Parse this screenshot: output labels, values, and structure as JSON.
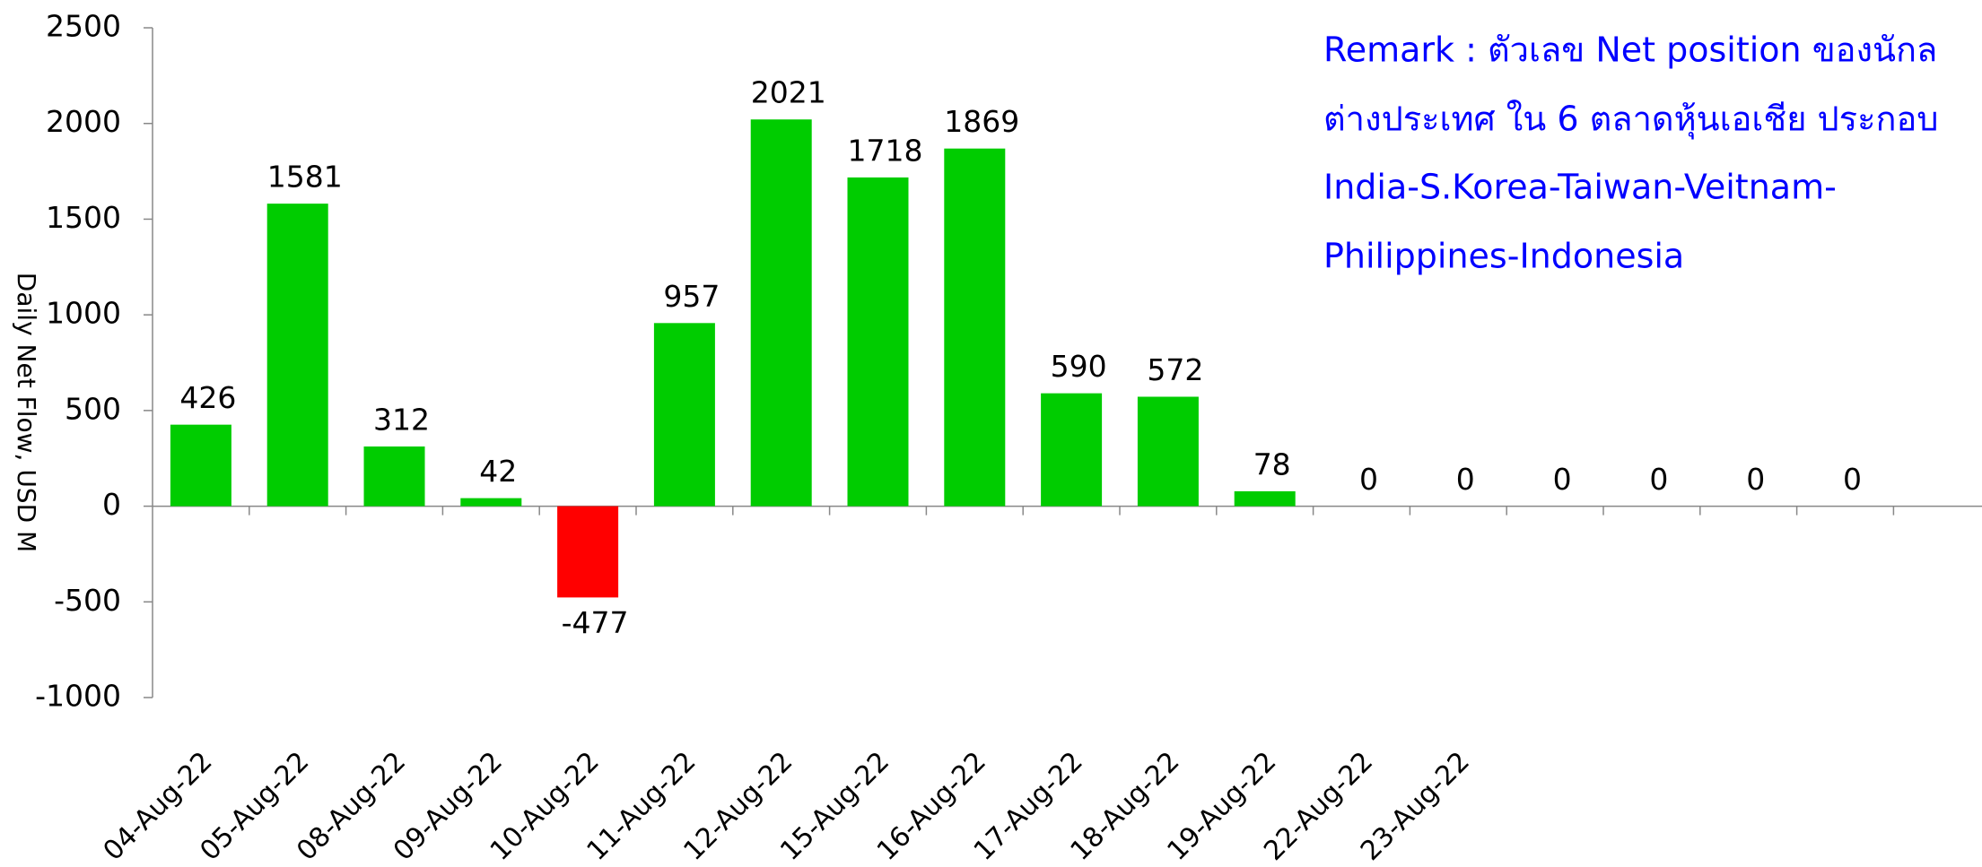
{
  "chart_data": {
    "type": "bar",
    "y_label": "Daily Net Flow, USD M",
    "remark": [
      "Remark :  ตัวเลข Net position ของนักล",
      "ต่างประเทศ ใน 6 ตลาดหุ้นเอเชีย ประกอบ",
      "India-S.Korea-Taiwan-Veitnam-",
      "Philippines-Indonesia"
    ],
    "categories": [
      "04-Aug-22",
      "05-Aug-22",
      "08-Aug-22",
      "09-Aug-22",
      "10-Aug-22",
      "11-Aug-22",
      "12-Aug-22",
      "15-Aug-22",
      "16-Aug-22",
      "17-Aug-22",
      "18-Aug-22",
      "19-Aug-22",
      "22-Aug-22",
      "23-Aug-22",
      null,
      null,
      null,
      null
    ],
    "values": [
      426,
      1581,
      312,
      42,
      -477,
      957,
      2021,
      1718,
      1869,
      590,
      572,
      78,
      0,
      0,
      0,
      0,
      0,
      0
    ],
    "color": "#00cc00",
    "negative_color": "#ff0000",
    "ylim": [
      -1000,
      2500
    ],
    "yticks": [
      -1000,
      -500,
      0,
      500,
      1000,
      1500,
      2000,
      2500
    ]
  }
}
